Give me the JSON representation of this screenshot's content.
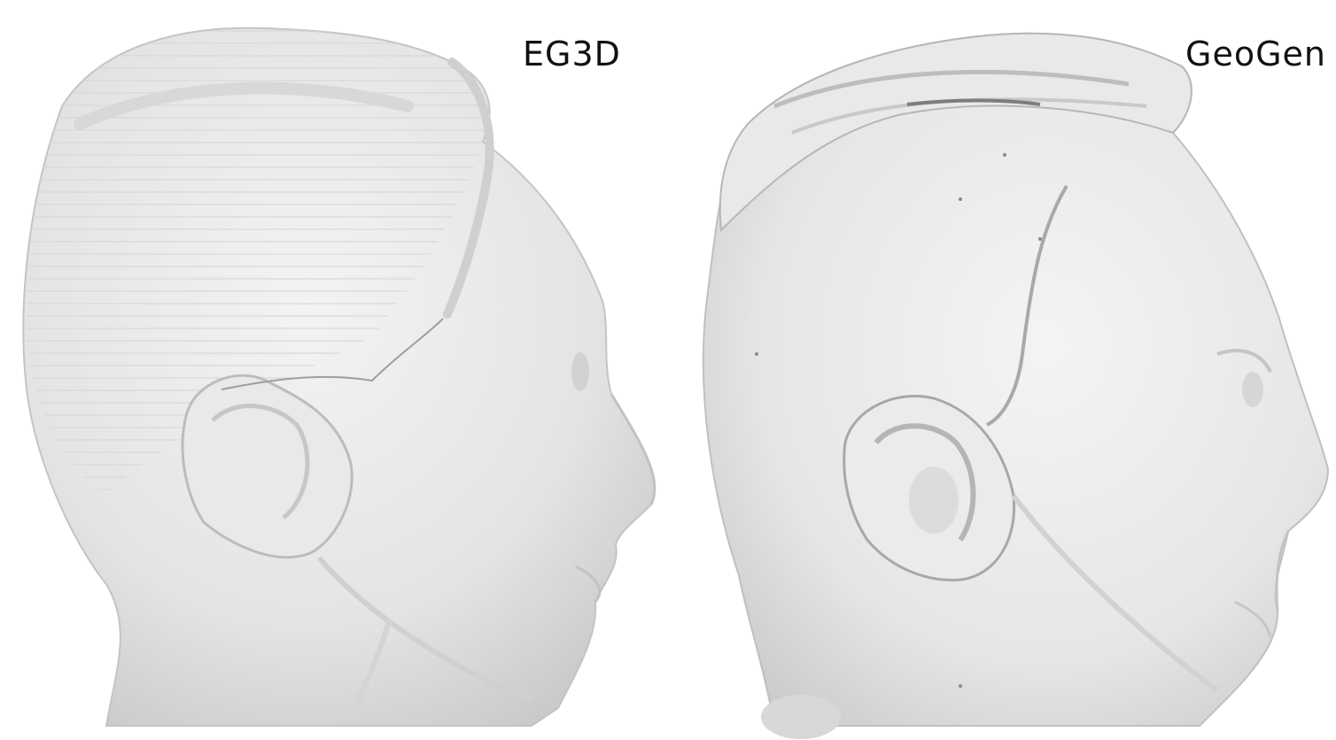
{
  "panels": [
    {
      "label": "EG3D"
    },
    {
      "label": "GeoGen"
    }
  ],
  "colors": {
    "background": "#ffffff",
    "mesh": "#e6e6e6",
    "mesh_shadow": "#b9b9b9",
    "label": "#111111"
  }
}
